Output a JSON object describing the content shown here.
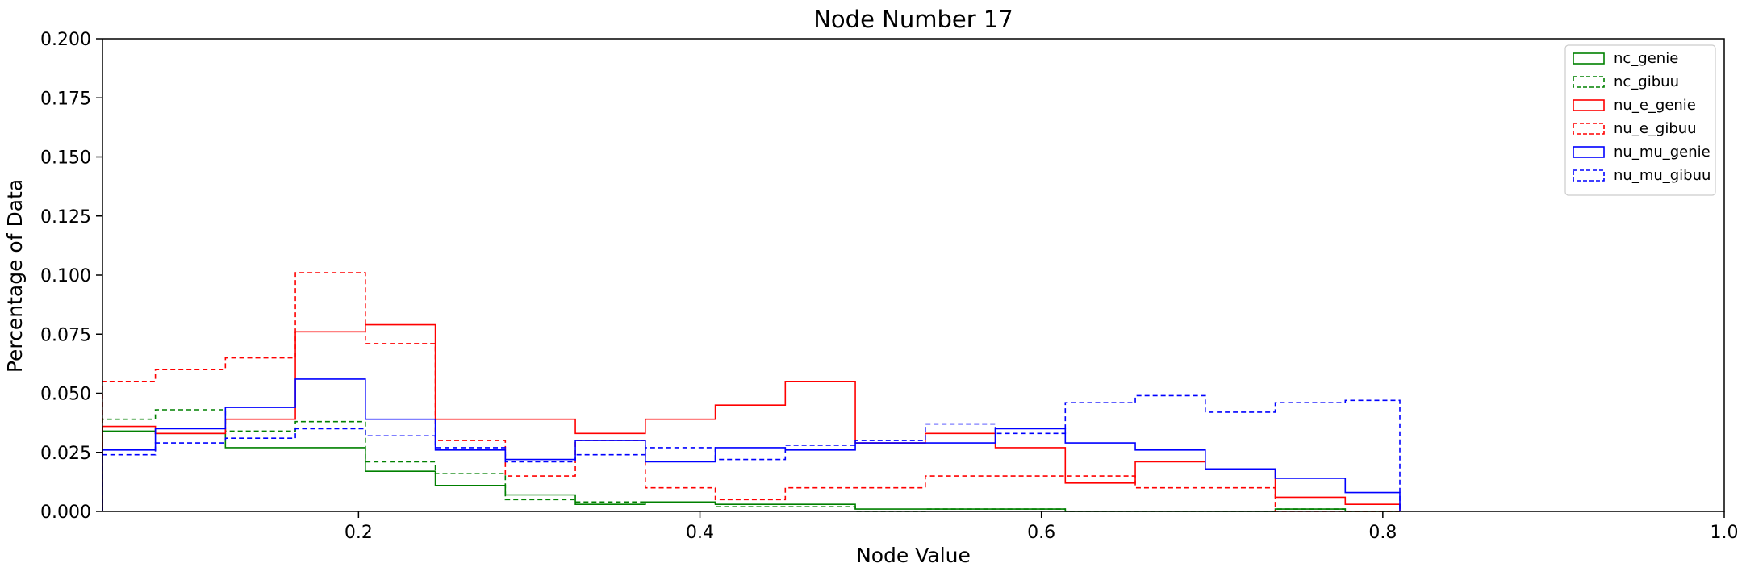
{
  "chart_data": {
    "type": "step-histogram",
    "title": "Node Number 17",
    "xlabel": "Node Value",
    "ylabel": "Percentage of Data",
    "xlim": [
      0.05,
      1.0
    ],
    "ylim": [
      0.0,
      0.2
    ],
    "xticks": [
      0.2,
      0.4,
      0.6,
      0.8,
      1.0
    ],
    "xtick_labels": [
      "0.2",
      "0.4",
      "0.6",
      "0.8",
      "1.0"
    ],
    "yticks": [
      0.0,
      0.025,
      0.05,
      0.075,
      0.1,
      0.125,
      0.15,
      0.175,
      0.2
    ],
    "ytick_labels": [
      "0.000",
      "0.025",
      "0.050",
      "0.075",
      "0.100",
      "0.125",
      "0.150",
      "0.175",
      "0.200"
    ],
    "grid": false,
    "legend_position": "top-right",
    "bin_edges": [
      0.05,
      0.081,
      0.122,
      0.163,
      0.204,
      0.245,
      0.286,
      0.327,
      0.368,
      0.409,
      0.45,
      0.491,
      0.532,
      0.573,
      0.614,
      0.655,
      0.696,
      0.737,
      0.778,
      0.81
    ],
    "series": [
      {
        "name": "nc_genie",
        "color": "#008000",
        "style": "solid",
        "values": [
          0.034,
          0.033,
          0.027,
          0.027,
          0.017,
          0.011,
          0.007,
          0.003,
          0.004,
          0.003,
          0.003,
          0.001,
          0.001,
          0.001,
          0.0,
          0.0,
          0.0,
          0.001,
          0.0
        ]
      },
      {
        "name": "nc_gibuu",
        "color": "#008000",
        "style": "dashed",
        "values": [
          0.039,
          0.043,
          0.034,
          0.038,
          0.021,
          0.016,
          0.005,
          0.004,
          0.004,
          0.002,
          0.002,
          0.0,
          0.001,
          0.001,
          0.0,
          0.0,
          0.0,
          0.001,
          0.0
        ]
      },
      {
        "name": "nu_e_genie",
        "color": "#ff0000",
        "style": "solid",
        "values": [
          0.036,
          0.033,
          0.039,
          0.076,
          0.079,
          0.039,
          0.039,
          0.033,
          0.039,
          0.045,
          0.055,
          0.029,
          0.033,
          0.027,
          0.012,
          0.021,
          0.018,
          0.006,
          0.003
        ]
      },
      {
        "name": "nu_e_gibuu",
        "color": "#ff0000",
        "style": "dashed",
        "values": [
          0.055,
          0.06,
          0.065,
          0.101,
          0.071,
          0.03,
          0.015,
          0.03,
          0.01,
          0.005,
          0.01,
          0.01,
          0.015,
          0.015,
          0.015,
          0.01,
          0.01,
          0.0,
          0.0
        ]
      },
      {
        "name": "nu_mu_genie",
        "color": "#0000ff",
        "style": "solid",
        "values": [
          0.026,
          0.035,
          0.044,
          0.056,
          0.039,
          0.026,
          0.022,
          0.03,
          0.021,
          0.027,
          0.026,
          0.029,
          0.029,
          0.035,
          0.029,
          0.026,
          0.018,
          0.014,
          0.008
        ]
      },
      {
        "name": "nu_mu_gibuu",
        "color": "#0000ff",
        "style": "dashed",
        "values": [
          0.024,
          0.029,
          0.031,
          0.035,
          0.032,
          0.027,
          0.021,
          0.024,
          0.027,
          0.022,
          0.028,
          0.03,
          0.037,
          0.033,
          0.046,
          0.049,
          0.042,
          0.046,
          0.047
        ]
      }
    ]
  }
}
